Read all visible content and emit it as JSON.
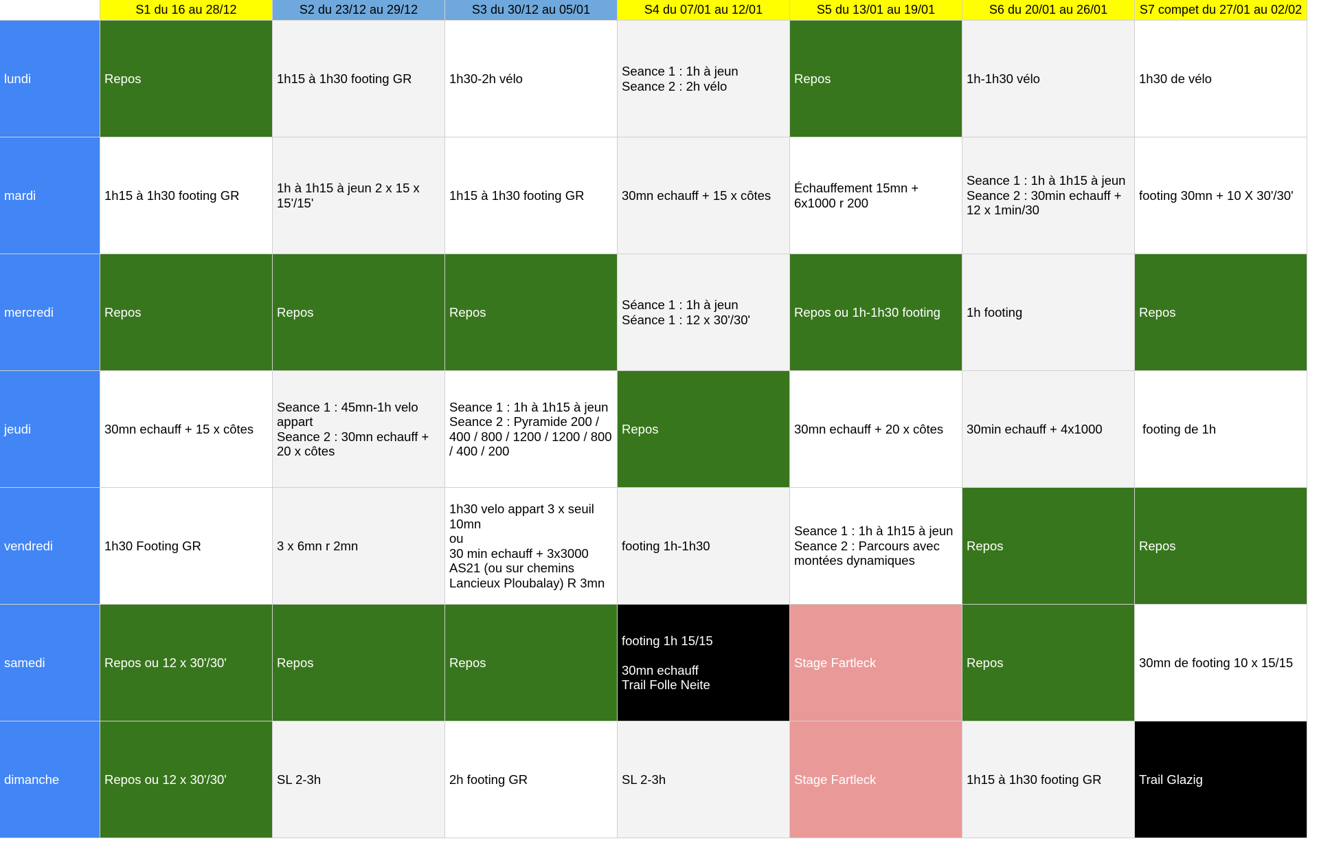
{
  "columns": [
    {
      "label": "S1 du 16 au 28/12",
      "color": "yellow"
    },
    {
      "label": "S2 du 23/12 au 29/12",
      "color": "blue"
    },
    {
      "label": "S3 du 30/12 au 05/01",
      "color": "blue"
    },
    {
      "label": "S4 du 07/01 au 12/01",
      "color": "yellow"
    },
    {
      "label": "S5 du 13/01 au 19/01",
      "color": "yellow"
    },
    {
      "label": "S6 du 20/01 au 26/01",
      "color": "yellow"
    },
    {
      "label": "S7 compet du 27/01 au 02/02",
      "color": "yellow"
    }
  ],
  "rows": [
    {
      "day": "lundi",
      "cells": [
        {
          "text": "Repos",
          "color": "green"
        },
        {
          "text": "1h15 à 1h30 footing GR",
          "color": "gray"
        },
        {
          "text": "1h30-2h vélo",
          "color": "white"
        },
        {
          "text": "Seance 1 : 1h à jeun\nSeance 2 : 2h vélo",
          "color": "gray"
        },
        {
          "text": "Repos",
          "color": "green"
        },
        {
          "text": "1h-1h30 vélo",
          "color": "gray"
        },
        {
          "text": "1h30 de vélo",
          "color": "white"
        }
      ]
    },
    {
      "day": "mardi",
      "cells": [
        {
          "text": "1h15 à 1h30 footing GR",
          "color": "white"
        },
        {
          "text": "1h à 1h15 à jeun 2 x 15 x 15'/15'",
          "color": "gray"
        },
        {
          "text": "1h15 à 1h30 footing GR",
          "color": "white"
        },
        {
          "text": "30mn echauff + 15 x côtes",
          "color": "gray"
        },
        {
          "text": "Échauffement 15mn + 6x1000 r 200",
          "color": "white"
        },
        {
          "text": "Seance 1 : 1h à 1h15 à jeun\nSeance 2 : 30min echauff + 12 x 1min/30",
          "color": "gray"
        },
        {
          "text": "footing 30mn + 10 X 30'/30'",
          "color": "white"
        }
      ]
    },
    {
      "day": "mercredi",
      "cells": [
        {
          "text": "Repos",
          "color": "green"
        },
        {
          "text": "Repos",
          "color": "green"
        },
        {
          "text": "Repos",
          "color": "green"
        },
        {
          "text": "Séance 1 : 1h à jeun\nSéance 1 : 12 x 30'/30'",
          "color": "gray"
        },
        {
          "text": "Repos ou 1h-1h30 footing",
          "color": "green"
        },
        {
          "text": "1h footing",
          "color": "gray"
        },
        {
          "text": "Repos",
          "color": "green"
        }
      ]
    },
    {
      "day": "jeudi",
      "cells": [
        {
          "text": "30mn echauff + 15 x côtes",
          "color": "white"
        },
        {
          "text": "Seance 1 : 45mn-1h velo appart\nSeance 2 : 30mn echauff + 20 x côtes",
          "color": "gray"
        },
        {
          "text": "Seance 1 : 1h à 1h15 à jeun\nSeance 2 : Pyramide 200 / 400 / 800 / 1200 / 1200 / 800 / 400 / 200",
          "color": "white"
        },
        {
          "text": "Repos",
          "color": "green"
        },
        {
          "text": "30mn echauff + 20 x côtes",
          "color": "white"
        },
        {
          "text": "30min echauff + 4x1000",
          "color": "gray"
        },
        {
          "text": " footing de 1h",
          "color": "white"
        }
      ]
    },
    {
      "day": "vendredi",
      "cells": [
        {
          "text": "1h30 Footing GR",
          "color": "white"
        },
        {
          "text": "3 x 6mn r 2mn",
          "color": "gray"
        },
        {
          "text": "1h30 velo appart 3 x seuil 10mn\nou\n30 min echauff + 3x3000 AS21 (ou sur chemins Lancieux Ploubalay) R 3mn",
          "color": "white"
        },
        {
          "text": "footing 1h-1h30",
          "color": "gray"
        },
        {
          "text": "Seance 1 : 1h à 1h15 à jeun\nSeance 2 : Parcours avec montées dynamiques",
          "color": "white"
        },
        {
          "text": "Repos",
          "color": "green"
        },
        {
          "text": "Repos",
          "color": "green"
        }
      ]
    },
    {
      "day": "samedi",
      "cells": [
        {
          "text": "Repos ou 12 x 30'/30'",
          "color": "green"
        },
        {
          "text": "Repos",
          "color": "green"
        },
        {
          "text": "Repos",
          "color": "green"
        },
        {
          "text": "footing 1h 15/15\n\n30mn echauff\nTrail Folle Neite",
          "color": "black"
        },
        {
          "text": "Stage Fartleck",
          "color": "pink"
        },
        {
          "text": "Repos",
          "color": "green"
        },
        {
          "text": "30mn de footing 10 x 15/15",
          "color": "white"
        }
      ]
    },
    {
      "day": "dimanche",
      "cells": [
        {
          "text": "Repos ou 12 x 30'/30'",
          "color": "green"
        },
        {
          "text": "SL 2-3h",
          "color": "gray"
        },
        {
          "text": "2h footing GR",
          "color": "white"
        },
        {
          "text": "SL 2-3h",
          "color": "gray"
        },
        {
          "text": "Stage Fartleck",
          "color": "pink"
        },
        {
          "text": "1h15 à 1h30 footing GR",
          "color": "gray"
        },
        {
          "text": "Trail Glazig",
          "color": "black"
        }
      ]
    }
  ]
}
